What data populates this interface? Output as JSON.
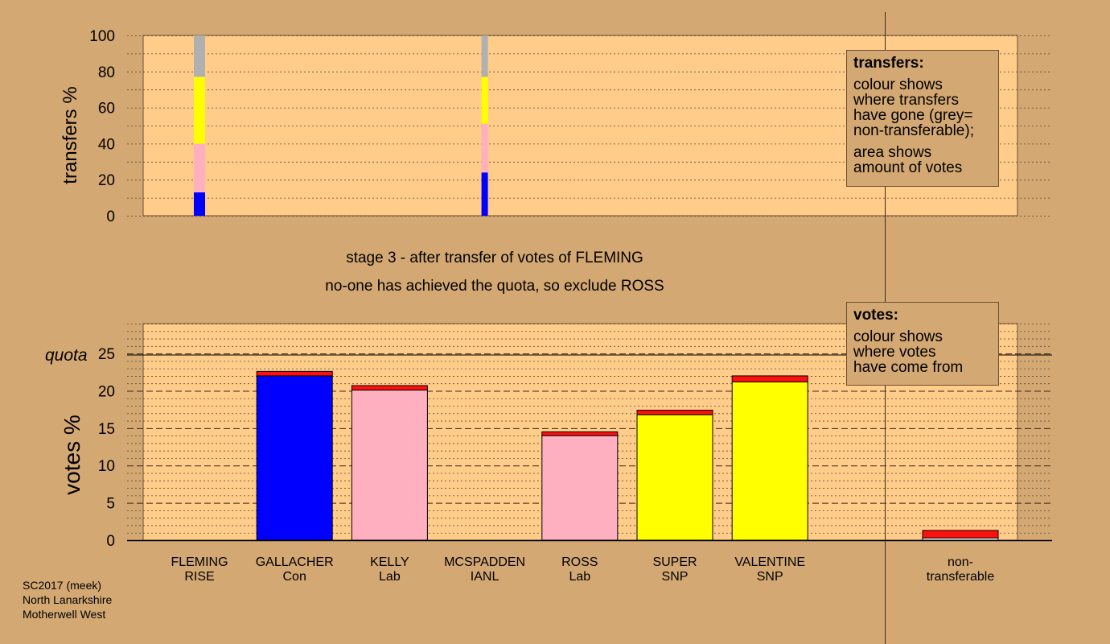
{
  "stage": {
    "line1": "stage 3 - after transfer of votes of FLEMING",
    "line2": "no-one has achieved the quota, so exclude ROSS"
  },
  "legend_transfers": {
    "title": "transfers:",
    "lines": [
      "colour shows",
      "where transfers",
      "have gone (grey=",
      "non-transferable);"
    ],
    "lines2": [
      "area shows",
      "amount of votes"
    ]
  },
  "legend_votes": {
    "title": "votes:",
    "lines": [
      "colour shows",
      "where votes",
      "have come from"
    ]
  },
  "footer": [
    "SC2017 (meek)",
    "North Lanarkshire",
    "Motherwell West"
  ],
  "colors": {
    "background": "#d4a873",
    "plot": "#ffcc8a",
    "con": "#0000ff",
    "lab": "#ffb0c0",
    "snp": "#ffff00",
    "transfer": "#ff1010",
    "nontransferable": "#b0b0b0"
  },
  "chart_data": [
    {
      "type": "bar",
      "name": "transfers",
      "ylabel": "transfers %",
      "ylim": [
        0,
        100
      ],
      "yticks": [
        0,
        20,
        40,
        60,
        80,
        100
      ],
      "bars": [
        {
          "slot": 0,
          "segments": [
            {
              "party": "con",
              "value": 13
            },
            {
              "party": "lab",
              "value": 27
            },
            {
              "party": "snp",
              "value": 37
            },
            {
              "party": "nontransferable",
              "value": 23
            }
          ]
        },
        {
          "slot": 3,
          "segments": [
            {
              "party": "con",
              "value": 24
            },
            {
              "party": "lab",
              "value": 27
            },
            {
              "party": "snp",
              "value": 26
            },
            {
              "party": "nontransferable",
              "value": 23
            }
          ]
        }
      ]
    },
    {
      "type": "bar",
      "name": "votes",
      "ylabel": "votes %",
      "ylim": [
        0,
        29
      ],
      "yticks": [
        0,
        5,
        10,
        15,
        20,
        25
      ],
      "quota": 24.8,
      "quota_label": "quota",
      "candidates": [
        {
          "name": "FLEMING",
          "party": "RISE",
          "color": "lab",
          "base": 0,
          "transfer": 0
        },
        {
          "name": "GALLACHER",
          "party": "Con",
          "color": "con",
          "base": 22.0,
          "transfer": 0.6
        },
        {
          "name": "KELLY",
          "party": "Lab",
          "color": "lab",
          "base": 20.1,
          "transfer": 0.6
        },
        {
          "name": "MCSPADDEN",
          "party": "IANL",
          "color": "lab",
          "base": 0,
          "transfer": 0
        },
        {
          "name": "ROSS",
          "party": "Lab",
          "color": "lab",
          "base": 14.0,
          "transfer": 0.5
        },
        {
          "name": "SUPER",
          "party": "SNP",
          "color": "snp",
          "base": 16.8,
          "transfer": 0.6
        },
        {
          "name": "VALENTINE",
          "party": "SNP",
          "color": "snp",
          "base": 21.2,
          "transfer": 0.8
        }
      ],
      "nontransferable": {
        "label1": "non-",
        "label2": "transferable",
        "base": 0.3,
        "transfer": 1.0
      }
    }
  ]
}
